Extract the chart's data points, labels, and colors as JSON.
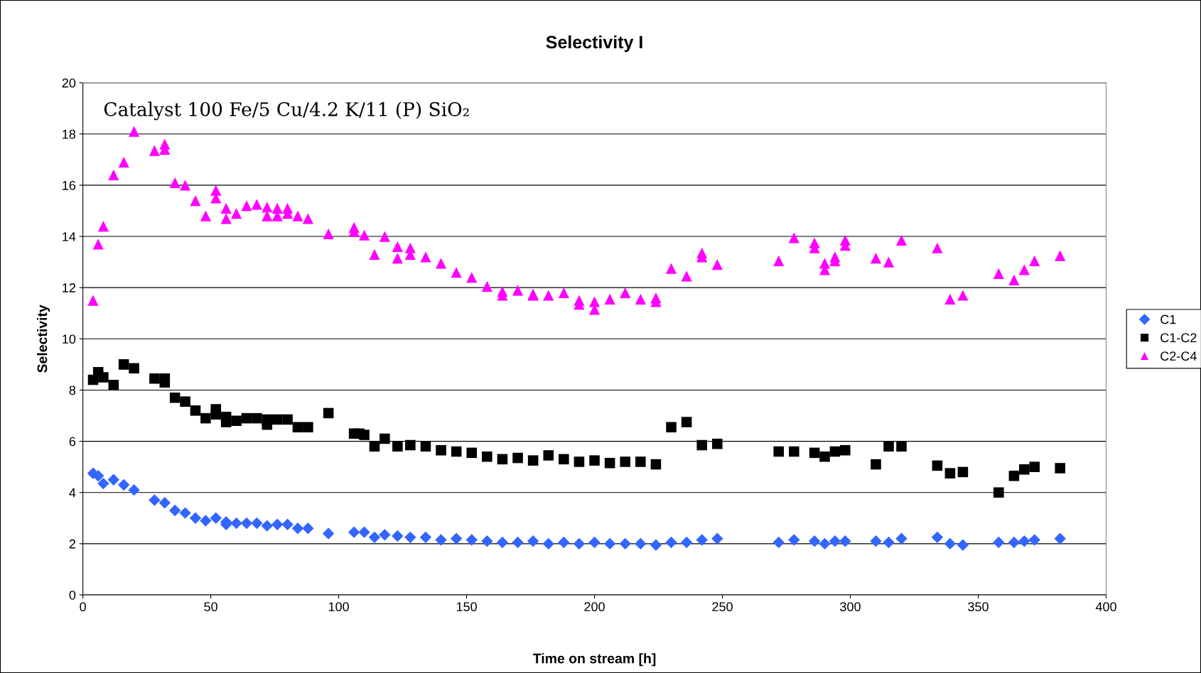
{
  "chart_data": {
    "type": "scatter",
    "title": "Selectivity I",
    "xlabel": "Time on stream [h]",
    "ylabel": "Selectivity",
    "annotations": [
      "Catalyst 100 Fe/5 Cu/4.2 K/11 (P) SiO₂"
    ],
    "xlim": [
      0,
      400
    ],
    "xticks": [
      0,
      50,
      100,
      150,
      200,
      250,
      300,
      350,
      400
    ],
    "ylim": [
      0,
      20
    ],
    "yticks": [
      0,
      2,
      4,
      6,
      8,
      10,
      12,
      14,
      16,
      18,
      20
    ],
    "grid": "y",
    "legend": "right",
    "series": [
      {
        "name": "C1",
        "color": "#3366ff",
        "marker": "diamond",
        "x": [
          4,
          6,
          8,
          12,
          16,
          20,
          28,
          32,
          36,
          40,
          44,
          48,
          52,
          56,
          56,
          60,
          64,
          68,
          72,
          76,
          80,
          84,
          88,
          96,
          106,
          110,
          114,
          118,
          123,
          128,
          134,
          140,
          146,
          152,
          158,
          164,
          170,
          176,
          182,
          188,
          194,
          200,
          206,
          212,
          218,
          224,
          230,
          236,
          242,
          248,
          272,
          278,
          286,
          290,
          294,
          298,
          310,
          315,
          320,
          334,
          339,
          344,
          358,
          364,
          368,
          372,
          382
        ],
        "values": [
          4.75,
          4.65,
          4.35,
          4.5,
          4.3,
          4.1,
          3.7,
          3.6,
          3.3,
          3.2,
          3.0,
          2.9,
          3.0,
          2.85,
          2.75,
          2.8,
          2.8,
          2.8,
          2.7,
          2.75,
          2.75,
          2.6,
          2.6,
          2.4,
          2.45,
          2.45,
          2.25,
          2.35,
          2.3,
          2.25,
          2.25,
          2.15,
          2.2,
          2.15,
          2.1,
          2.05,
          2.05,
          2.1,
          2.0,
          2.05,
          2.0,
          2.05,
          2.0,
          2.0,
          2.0,
          1.95,
          2.05,
          2.05,
          2.15,
          2.2,
          2.05,
          2.15,
          2.1,
          2.0,
          2.1,
          2.1,
          2.1,
          2.05,
          2.2,
          2.25,
          2.0,
          1.95,
          2.05,
          2.05,
          2.1,
          2.15,
          2.2
        ]
      },
      {
        "name": "C1-C2",
        "color": "#000000",
        "marker": "square",
        "x": [
          4,
          6,
          8,
          12,
          16,
          20,
          28,
          32,
          32,
          36,
          40,
          44,
          48,
          52,
          52,
          56,
          56,
          60,
          64,
          68,
          72,
          72,
          76,
          80,
          84,
          88,
          96,
          106,
          108,
          110,
          114,
          118,
          123,
          128,
          134,
          140,
          146,
          152,
          158,
          164,
          170,
          176,
          182,
          188,
          194,
          200,
          206,
          212,
          218,
          224,
          230,
          236,
          242,
          248,
          272,
          278,
          286,
          290,
          294,
          298,
          310,
          315,
          320,
          334,
          339,
          344,
          358,
          364,
          368,
          372,
          382
        ],
        "values": [
          8.4,
          8.7,
          8.5,
          8.2,
          9.0,
          8.85,
          8.45,
          8.45,
          8.3,
          7.7,
          7.55,
          7.2,
          6.9,
          7.25,
          7.05,
          6.95,
          6.75,
          6.8,
          6.9,
          6.9,
          6.85,
          6.65,
          6.85,
          6.85,
          6.55,
          6.55,
          7.1,
          6.3,
          6.3,
          6.25,
          5.8,
          6.1,
          5.8,
          5.85,
          5.8,
          5.65,
          5.6,
          5.55,
          5.4,
          5.3,
          5.35,
          5.25,
          5.45,
          5.3,
          5.2,
          5.25,
          5.15,
          5.2,
          5.2,
          5.1,
          6.55,
          6.75,
          5.85,
          5.9,
          5.6,
          5.6,
          5.55,
          5.4,
          5.6,
          5.65,
          5.1,
          5.8,
          5.8,
          5.05,
          4.75,
          4.8,
          4.0,
          4.65,
          4.9,
          5.0,
          4.95
        ]
      },
      {
        "name": "C2-C4",
        "color": "#ff00ff",
        "marker": "triangle",
        "x": [
          4,
          6,
          8,
          12,
          16,
          20,
          28,
          32,
          32,
          36,
          40,
          44,
          48,
          52,
          52,
          56,
          56,
          60,
          64,
          68,
          72,
          72,
          76,
          76,
          80,
          80,
          84,
          88,
          96,
          106,
          106,
          110,
          114,
          118,
          123,
          123,
          128,
          128,
          134,
          140,
          146,
          152,
          158,
          164,
          164,
          170,
          176,
          176,
          182,
          188,
          194,
          194,
          200,
          200,
          206,
          212,
          218,
          224,
          224,
          230,
          236,
          242,
          242,
          248,
          272,
          278,
          286,
          286,
          290,
          290,
          294,
          294,
          298,
          298,
          310,
          315,
          320,
          334,
          339,
          344,
          358,
          364,
          368,
          372,
          382
        ],
        "values": [
          11.5,
          13.7,
          14.4,
          16.4,
          16.9,
          18.1,
          17.35,
          17.6,
          17.4,
          16.1,
          16.0,
          15.4,
          14.8,
          15.8,
          15.5,
          15.1,
          14.7,
          14.9,
          15.2,
          15.25,
          15.15,
          14.8,
          15.1,
          14.8,
          15.1,
          14.9,
          14.8,
          14.7,
          14.1,
          14.35,
          14.2,
          14.05,
          13.3,
          14.0,
          13.6,
          13.15,
          13.55,
          13.3,
          13.2,
          12.95,
          12.6,
          12.4,
          12.05,
          11.85,
          11.7,
          11.9,
          11.75,
          11.7,
          11.7,
          11.8,
          11.5,
          11.35,
          11.45,
          11.15,
          11.55,
          11.8,
          11.55,
          11.6,
          11.45,
          12.75,
          12.45,
          13.35,
          13.2,
          12.9,
          13.05,
          13.95,
          13.75,
          13.55,
          12.95,
          12.7,
          13.2,
          13.05,
          13.85,
          13.65,
          13.15,
          13.0,
          13.85,
          13.55,
          11.55,
          11.7,
          12.55,
          12.3,
          12.7,
          13.05,
          13.25
        ]
      }
    ]
  }
}
